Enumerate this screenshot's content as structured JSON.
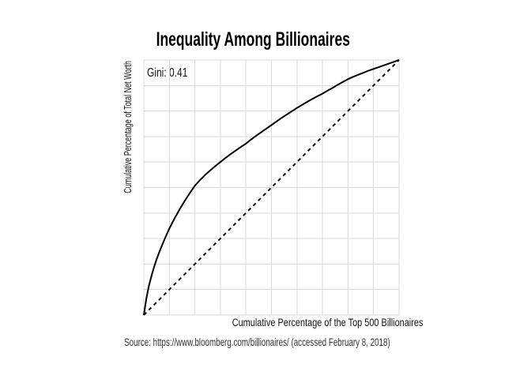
{
  "page": {
    "background": "#ffffff"
  },
  "chart_data": {
    "type": "line",
    "title": "Inequality Among Billionaires",
    "annotation": "Gini: 0.41",
    "gini_value": 0.41,
    "xlabel": "Cumulative Percentage of the Top 500 Billionaires",
    "ylabel": "Cumulative Percentage of Total Net Worth",
    "source": "Source: https://www.bloomberg.com/billionaires/ (accessed February 8, 2018)",
    "xlim": [
      0,
      100
    ],
    "ylim": [
      0,
      100
    ],
    "tick_labels": "none",
    "legend": "none",
    "grid": {
      "interval": 10,
      "color": "#d9d9d9",
      "width": 1
    },
    "series": [
      {
        "name": "lorenz-curve",
        "style": "solid",
        "color": "#000000",
        "width": 2,
        "points": [
          [
            0,
            0
          ],
          [
            1,
            6.5
          ],
          [
            2,
            11.5
          ],
          [
            3,
            15.3
          ],
          [
            4,
            18.8
          ],
          [
            5,
            21.8
          ],
          [
            6,
            24.5
          ],
          [
            7,
            27.0
          ],
          [
            8,
            29.4
          ],
          [
            9,
            31.7
          ],
          [
            10,
            33.9
          ],
          [
            12,
            37.8
          ],
          [
            14,
            41.4
          ],
          [
            16,
            44.7
          ],
          [
            18,
            47.8
          ],
          [
            20,
            50.7
          ],
          [
            22,
            52.9
          ],
          [
            24,
            54.9
          ],
          [
            26,
            56.7
          ],
          [
            28,
            58.4
          ],
          [
            30,
            60.0
          ],
          [
            32,
            61.6
          ],
          [
            34,
            63.1
          ],
          [
            36,
            64.5
          ],
          [
            38,
            65.9
          ],
          [
            40,
            67.2
          ],
          [
            42,
            68.8
          ],
          [
            44,
            70.3
          ],
          [
            46,
            71.7
          ],
          [
            48,
            73.1
          ],
          [
            50,
            74.5
          ],
          [
            52,
            75.9
          ],
          [
            54,
            77.3
          ],
          [
            56,
            78.6
          ],
          [
            58,
            79.9
          ],
          [
            60,
            81.2
          ],
          [
            62,
            82.4
          ],
          [
            64,
            83.6
          ],
          [
            66,
            84.7
          ],
          [
            68,
            85.8
          ],
          [
            70,
            86.8
          ],
          [
            72,
            88.0
          ],
          [
            74,
            89.1
          ],
          [
            76,
            90.3
          ],
          [
            78,
            91.4
          ],
          [
            80,
            92.5
          ],
          [
            82,
            93.4
          ],
          [
            84,
            94.2
          ],
          [
            86,
            95.0
          ],
          [
            88,
            95.8
          ],
          [
            90,
            96.5
          ],
          [
            92,
            97.2
          ],
          [
            94,
            97.9
          ],
          [
            96,
            98.6
          ],
          [
            98,
            99.3
          ],
          [
            100,
            100
          ]
        ]
      },
      {
        "name": "line-of-equality",
        "style": "dashed",
        "color": "#000000",
        "width": 1.9,
        "dash": "4.5,4.4",
        "points": [
          [
            0,
            0
          ],
          [
            100,
            100
          ]
        ]
      }
    ]
  }
}
